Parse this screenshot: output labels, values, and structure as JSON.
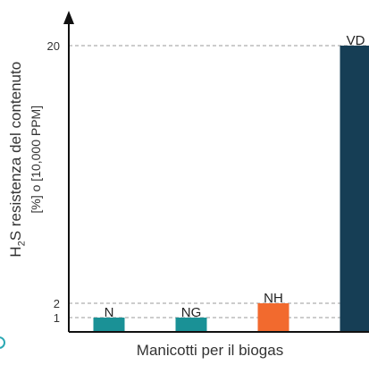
{
  "chart_data": {
    "type": "bar",
    "categories": [
      "N",
      "NG",
      "NH",
      "VD"
    ],
    "values": [
      1,
      1,
      2,
      20
    ],
    "colors": [
      "#1a9196",
      "#1a9196",
      "#f26a2e",
      "#163e55"
    ],
    "ylabel_main": "H",
    "ylabel_sub": "2",
    "ylabel_rest": "S resistenza del contenuto",
    "ylabel_line2": "[%] o [10,000 PPM]",
    "xlabel": "Manicotti per il biogas",
    "yticks": [
      1,
      2,
      20
    ],
    "ylim": [
      0,
      21
    ],
    "grid": "dashed reference lines at ticks"
  }
}
